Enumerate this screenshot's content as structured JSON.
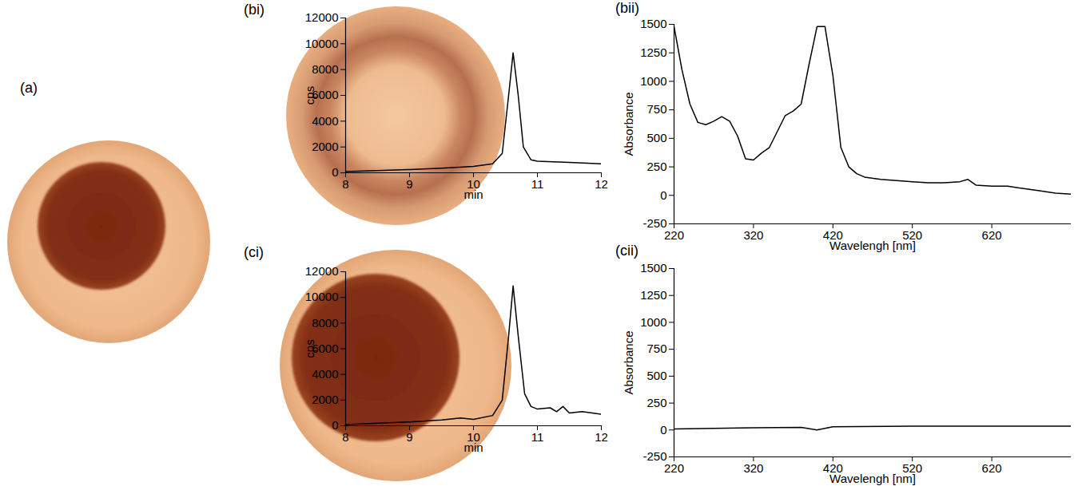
{
  "chart_data": [
    {
      "type": "image",
      "title": "(a)"
    },
    {
      "type": "line",
      "title": "(bi)",
      "xlabel": "min",
      "ylabel": "cps",
      "x": [
        8,
        9,
        9.5,
        10,
        10.3,
        10.45,
        10.55,
        10.62,
        10.7,
        10.78,
        10.9,
        11,
        11.5,
        12
      ],
      "values": [
        100,
        250,
        350,
        500,
        700,
        1500,
        6000,
        9300,
        6000,
        2000,
        1000,
        900,
        800,
        700
      ],
      "color": "#000000",
      "xlim": [
        8,
        12
      ],
      "xticks": [
        8,
        9,
        10,
        11,
        12
      ],
      "ylim": [
        0,
        12000
      ],
      "yticks": [
        0,
        2000,
        4000,
        6000,
        8000,
        10000,
        12000
      ]
    },
    {
      "type": "line",
      "title": "(bii)",
      "xlabel": "Wavelengh [nm]",
      "ylabel": "Absorbance",
      "x": [
        220,
        230,
        240,
        250,
        260,
        270,
        280,
        290,
        300,
        310,
        320,
        330,
        340,
        350,
        360,
        370,
        380,
        390,
        400,
        410,
        420,
        430,
        440,
        450,
        460,
        480,
        500,
        520,
        540,
        560,
        580,
        590,
        600,
        620,
        640,
        660,
        680,
        700,
        720
      ],
      "values": [
        1480,
        1100,
        800,
        640,
        620,
        650,
        690,
        650,
        520,
        320,
        310,
        370,
        420,
        560,
        700,
        740,
        800,
        1150,
        1480,
        1480,
        1050,
        420,
        250,
        190,
        160,
        140,
        130,
        120,
        110,
        110,
        120,
        140,
        90,
        80,
        80,
        60,
        40,
        20,
        10
      ],
      "color": "#000000",
      "xlim": [
        220,
        720
      ],
      "xticks": [
        220,
        320,
        420,
        520,
        620
      ],
      "ylim": [
        -250,
        1500
      ],
      "yticks": [
        -250,
        0,
        250,
        500,
        750,
        1000,
        1250,
        1500
      ]
    },
    {
      "type": "line",
      "title": "(ci)",
      "xlabel": "min",
      "ylabel": "cps",
      "x": [
        8,
        9,
        9.5,
        9.8,
        10,
        10.3,
        10.45,
        10.55,
        10.62,
        10.7,
        10.8,
        10.9,
        11,
        11.2,
        11.3,
        11.4,
        11.5,
        11.7,
        12
      ],
      "values": [
        100,
        300,
        450,
        600,
        500,
        800,
        2000,
        7000,
        10900,
        7000,
        2500,
        1500,
        1300,
        1400,
        1100,
        1500,
        1000,
        1100,
        900
      ],
      "color": "#000000",
      "xlim": [
        8,
        12
      ],
      "xticks": [
        8,
        9,
        10,
        11,
        12
      ],
      "ylim": [
        0,
        12000
      ],
      "yticks": [
        0,
        2000,
        4000,
        6000,
        8000,
        10000,
        12000
      ]
    },
    {
      "type": "line",
      "title": "(cii)",
      "xlabel": "Wavelengh [nm]",
      "ylabel": "Absorbance",
      "x": [
        220,
        320,
        380,
        400,
        420,
        520,
        620,
        720
      ],
      "values": [
        10,
        20,
        25,
        0,
        30,
        35,
        35,
        35
      ],
      "color": "#000000",
      "xlim": [
        220,
        720
      ],
      "xticks": [
        220,
        320,
        420,
        520,
        620
      ],
      "ylim": [
        -250,
        1500
      ],
      "yticks": [
        -250,
        0,
        250,
        500,
        750,
        1000,
        1250,
        1500
      ]
    }
  ]
}
